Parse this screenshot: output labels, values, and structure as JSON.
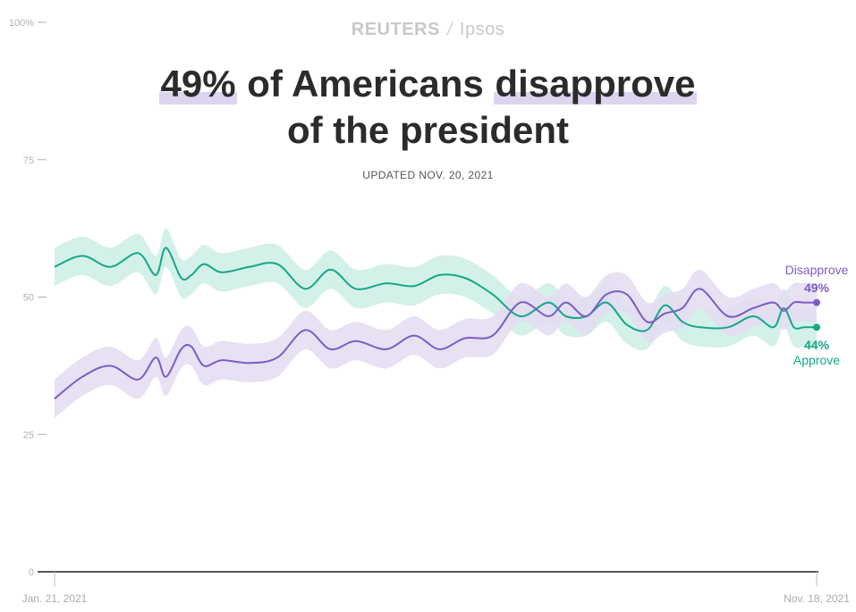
{
  "brand": {
    "left": "REUTERS",
    "sep": "/",
    "right": "Ipsos"
  },
  "title": {
    "highlight1": "49%",
    "middle": " of Americans ",
    "highlight2": "disapprove",
    "line2": "of the president"
  },
  "updated": "UPDATED NOV. 20, 2021",
  "colors": {
    "approve": "#13a88a",
    "approve_band": "#cdeee5",
    "disapprove": "#7d5cc6",
    "disapprove_band": "#e3dcf1",
    "axis": "#222222",
    "tick": "#b0b0b0"
  },
  "chart_data": {
    "type": "line",
    "title": "49% of Americans disapprove of the president",
    "x_start_label": "Jan. 21, 2021",
    "x_end_label": "Nov. 18, 2021",
    "ylim": [
      0,
      100
    ],
    "yticks": [
      {
        "value": 0,
        "label": "0"
      },
      {
        "value": 25,
        "label": "25"
      },
      {
        "value": 50,
        "label": "50"
      },
      {
        "value": 75,
        "label": "75"
      },
      {
        "value": 100,
        "label": "100%"
      }
    ],
    "x": [
      "2021-01-21",
      "2021-02-01",
      "2021-02-12",
      "2021-02-23",
      "2021-03-02",
      "2021-03-06",
      "2021-03-12",
      "2021-03-16",
      "2021-03-21",
      "2021-03-28",
      "2021-04-08",
      "2021-04-19",
      "2021-04-30",
      "2021-05-10",
      "2021-05-20",
      "2021-06-01",
      "2021-06-12",
      "2021-06-22",
      "2021-07-02",
      "2021-07-13",
      "2021-07-24",
      "2021-08-04",
      "2021-08-11",
      "2021-08-19",
      "2021-08-27",
      "2021-09-04",
      "2021-09-12",
      "2021-09-19",
      "2021-09-26",
      "2021-10-03",
      "2021-10-14",
      "2021-10-24",
      "2021-11-01",
      "2021-11-05",
      "2021-11-09",
      "2021-11-13",
      "2021-11-18"
    ],
    "series": [
      {
        "name": "Approve",
        "end_label": "44%",
        "values": [
          55.5,
          57.5,
          55.5,
          58,
          54,
          59,
          53.5,
          54,
          56,
          54.5,
          55.5,
          56,
          51.5,
          55,
          51.5,
          52.5,
          52,
          54,
          53.5,
          50.5,
          46.5,
          49,
          46.5,
          46.5,
          49,
          45,
          44,
          48.5,
          45.5,
          44.5,
          44.5,
          46.5,
          44.5,
          48,
          44.5,
          44.5,
          44.5
        ],
        "band": 3.5
      },
      {
        "name": "Disapprove",
        "end_label": "49%",
        "values": [
          31.5,
          35.5,
          37.5,
          35,
          39,
          35.5,
          40.5,
          41,
          37.5,
          38.5,
          38,
          39,
          44,
          40.5,
          42,
          40.5,
          43,
          40.5,
          42.5,
          43,
          49,
          46.5,
          49,
          46.5,
          50.5,
          50.5,
          45.5,
          47,
          48,
          51.5,
          46.5,
          48,
          49,
          47.5,
          49,
          49,
          49
        ],
        "band": 3.5
      }
    ]
  }
}
